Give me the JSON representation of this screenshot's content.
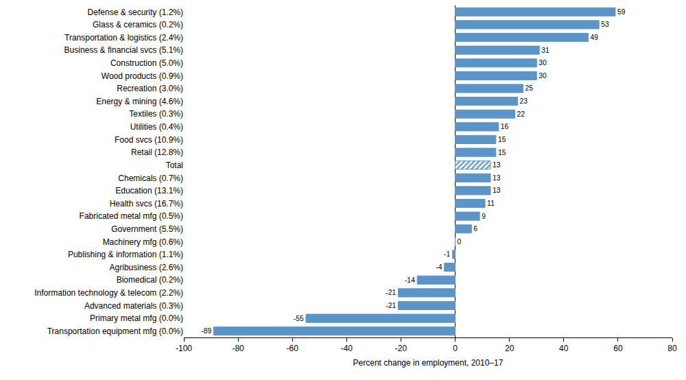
{
  "chart_data": {
    "type": "bar",
    "orientation": "horizontal",
    "xlabel": "Percent change in employment, 2010–17",
    "categories": [
      "Defense & security (1.2%)",
      "Glass & ceramics (0.2%)",
      "Transportation & logistics (2.4%)",
      "Business & financial svcs (5.1%)",
      "Construction (5.0%)",
      "Wood products (0.9%)",
      "Recreation (3.0%)",
      "Energy & mining (4.6%)",
      "Textiles (0.3%)",
      "Utilities (0.4%)",
      "Food svcs (10.9%)",
      "Retail (12.8%)",
      "Total",
      "Chemicals (0.7%)",
      "Education (13.1%)",
      "Health svcs (16.7%)",
      "Fabricated metal mfg (0.5%)",
      "Government (5.5%)",
      "Machinery mfg (0.6%)",
      "Publishing & information (1.1%)",
      "Agribusiness (2.6%)",
      "Biomedical (0.2%)",
      "Information technology & telecom (2.2%)",
      "Advanced materials (0.3%)",
      "Primary metal mfg (0.0%)",
      "Transportation equipment mfg (0.0%)"
    ],
    "series": [
      {
        "color": "#5b95c8",
        "marker": "solid",
        "values": [
          59,
          53,
          49,
          31,
          30,
          30,
          25,
          23,
          22,
          16,
          15,
          15,
          null,
          13,
          13,
          11,
          9,
          6,
          0,
          -1,
          -4,
          -14,
          -21,
          -21,
          -55,
          -89
        ]
      },
      {
        "color": "#5b95c8",
        "marker": "hatched",
        "values": [
          null,
          null,
          null,
          null,
          null,
          null,
          null,
          null,
          null,
          null,
          null,
          null,
          13,
          null,
          null,
          null,
          null,
          null,
          null,
          null,
          null,
          null,
          null,
          null,
          null,
          null
        ]
      }
    ],
    "xlim": [
      -100,
      80
    ],
    "xticks": [
      -100,
      -80,
      -60,
      -40,
      -20,
      0,
      20,
      40,
      60,
      80
    ],
    "data_labels": true,
    "grid": false
  }
}
